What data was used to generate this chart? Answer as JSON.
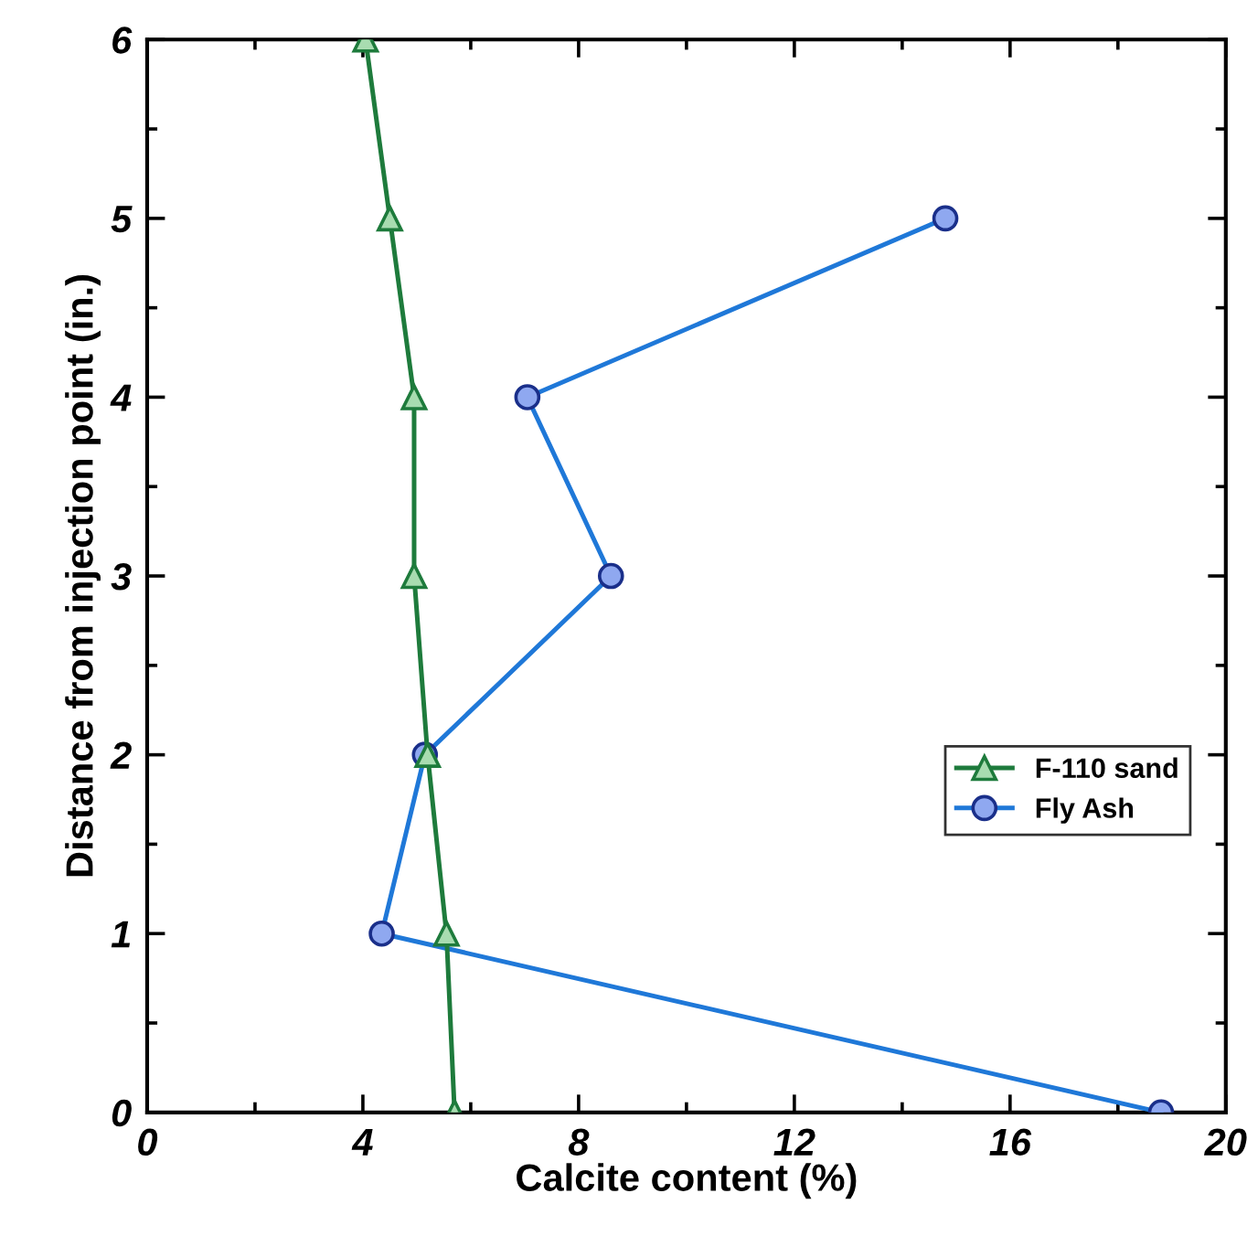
{
  "chart_data": {
    "type": "line",
    "xlabel": "Calcite content (%)",
    "ylabel": "Distance from injection point (in.)",
    "xlim": [
      0,
      20
    ],
    "xticks": [
      0,
      4,
      8,
      12,
      16,
      20
    ],
    "ylim": [
      0,
      6
    ],
    "yticks": [
      0,
      1,
      2,
      3,
      4,
      5,
      6
    ],
    "grid": false,
    "legend": "right",
    "series": [
      {
        "name": "F-110 sand",
        "color": "#1e7b3c",
        "marker": "triangle",
        "x": [
          5.7,
          5.55,
          5.2,
          4.95,
          4.95,
          4.5,
          4.05
        ],
        "values": [
          0,
          1,
          2,
          3,
          4,
          5,
          6
        ]
      },
      {
        "name": "Fly Ash",
        "color": "#1f78d8",
        "marker": "circle",
        "x": [
          18.8,
          4.35,
          5.15,
          8.6,
          7.05,
          14.8
        ],
        "values": [
          0,
          1,
          2,
          3,
          4,
          5
        ]
      }
    ]
  }
}
